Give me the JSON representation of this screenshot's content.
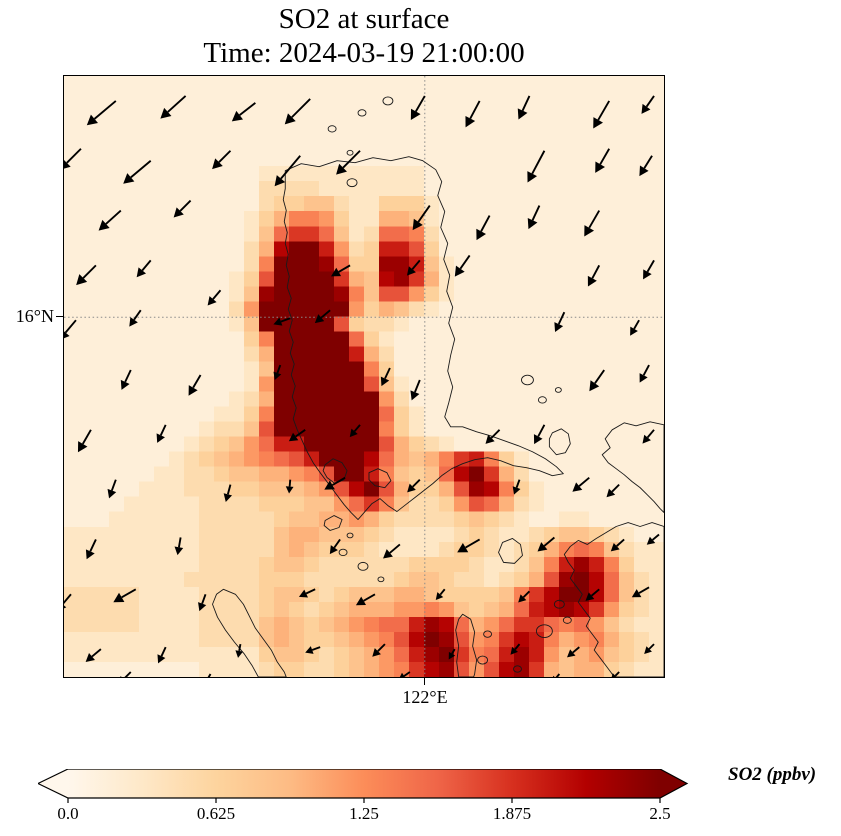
{
  "figure": {
    "title_line1": "SO2 at surface",
    "title_line2": "Time: 2024-03-19 21:00:00"
  },
  "axes": {
    "y_tick_label": "16°N",
    "x_tick_label": "122°E"
  },
  "colorbar": {
    "label": "SO2 (ppbv)",
    "ticks": [
      "0.0",
      "0.625",
      "1.25",
      "1.875",
      "2.5"
    ]
  },
  "chart_data": {
    "type": "heatmap",
    "subtype": "geographic SO2 concentration map with wind quiver overlay and coastlines",
    "title": "SO2 at surface",
    "subtitle": "Time: 2024-03-19 21:00:00",
    "x_tick": {
      "label": "122°E",
      "frac": 0.601
    },
    "y_tick": {
      "label": "16°N",
      "frac": 0.401
    },
    "grid_on": true,
    "colorbar": {
      "label": "SO2 (ppbv)",
      "vmin": 0.0,
      "vmax": 2.5,
      "ticks": [
        0.0,
        0.625,
        1.25,
        1.875,
        2.5
      ],
      "extend": "both",
      "colormap": [
        "#fff7ec",
        "#fee8c8",
        "#fdd49e",
        "#fdbb84",
        "#fc8d59",
        "#ef6548",
        "#d7301f",
        "#b30000",
        "#7f0000"
      ]
    },
    "grid": {
      "cols": 40,
      "rows": 40,
      "value_scale": "hex digit 0-15 maps linearly to 0-2.5 ppbv",
      "values": [
        "1111111111111111111111111111111111111111",
        "1111111111111111111111111111111111111111",
        "1111111111111111111111111111111111111111",
        "1111111111111111111111111111111111111111",
        "1111111111111111111111111111111111111111",
        "1111111111111111111111111111111111111111",
        "1111111111111222222222221111111111111111",
        "1111111111111333322222221111111111111111",
        "1111111111111344553224442111111111111111",
        "1111111111112468874226652111111111111111",
        "111111111111259bb95239983111111111111111",
        "11111111111136dffc734cca4111111111111111",
        "11111111111138fffe944eec5211111111111111",
        "1111111111124affffb65deb6211111111111111",
        "1111111111125effffe85aa74211111111111111",
        "1111111111137ffffff746532111111111111111",
        "1111111111125fffffa433211111111111111111",
        "11111111111148fffff942111111111111111111",
        "11111111111136fffffc63111111111111111111",
        "11111111111125ffffff84111111111111111111",
        "11111111111127ffffffa5211111111111111111",
        "11111111111236fffffff7311111111111111111",
        "11111111112248fffffff9421111111111111111",
        "1111111112335afffffff8421111111111111111",
        "11111111234579ccfffffa643211111111111111",
        "111111123456789acfffd96568bc842111111111",
        "11111122334556678affc85459dfb63111111111",
        "111112223334455567adfa6446aed84211111111",
        "11112222233334445579b853347a963211111111",
        "1112222223333345566764333345432112211111",
        "2222222223333356655543222234322345543211",
        "2222222223333356544432222344323468985322",
        "222222222333345543333334444322358cec8422",
        "22222222333334443333334554332346aefd9532",
        "3333322223333455434555665444458bdffd9532",
        "3333322223333454345666778754569cdedb7432",
        "33333222233335654567899ced9679bb98975322",
        "2222222223333565445678adfea78bdc86786432",
        "22222222222224554345679cefb89cec75675432",
        "11111111122223443345678bdea7adeb65664322"
      ]
    },
    "arrows_format": "[x_px, y_px, direction_deg_screen, length_px] in 602x603 plot-local coords; wind blowing toward SW",
    "arrows": [
      [
        52,
        25,
        140,
        38
      ],
      [
        122,
        20,
        138,
        34
      ],
      [
        192,
        27,
        142,
        30
      ],
      [
        247,
        23,
        135,
        36
      ],
      [
        362,
        20,
        120,
        28
      ],
      [
        417,
        25,
        118,
        30
      ],
      [
        467,
        20,
        115,
        26
      ],
      [
        547,
        25,
        120,
        32
      ],
      [
        592,
        20,
        125,
        22
      ],
      [
        17,
        73,
        135,
        30
      ],
      [
        87,
        85,
        140,
        36
      ],
      [
        167,
        75,
        135,
        26
      ],
      [
        237,
        80,
        130,
        40
      ],
      [
        297,
        75,
        135,
        34
      ],
      [
        482,
        75,
        118,
        36
      ],
      [
        547,
        73,
        120,
        28
      ],
      [
        590,
        80,
        122,
        24
      ],
      [
        57,
        135,
        138,
        30
      ],
      [
        127,
        125,
        135,
        24
      ],
      [
        367,
        130,
        125,
        30
      ],
      [
        427,
        140,
        118,
        28
      ],
      [
        477,
        130,
        115,
        26
      ],
      [
        537,
        135,
        120,
        30
      ],
      [
        32,
        190,
        135,
        28
      ],
      [
        87,
        185,
        130,
        22
      ],
      [
        157,
        215,
        130,
        20
      ],
      [
        287,
        190,
        150,
        22
      ],
      [
        357,
        185,
        130,
        20
      ],
      [
        407,
        180,
        125,
        26
      ],
      [
        537,
        190,
        118,
        24
      ],
      [
        592,
        185,
        120,
        22
      ],
      [
        12,
        245,
        130,
        26
      ],
      [
        77,
        235,
        125,
        20
      ],
      [
        227,
        243,
        160,
        18
      ],
      [
        267,
        235,
        140,
        20
      ],
      [
        502,
        237,
        115,
        22
      ],
      [
        577,
        245,
        120,
        18
      ],
      [
        67,
        295,
        115,
        22
      ],
      [
        137,
        300,
        120,
        24
      ],
      [
        217,
        290,
        110,
        16
      ],
      [
        327,
        293,
        115,
        20
      ],
      [
        357,
        305,
        112,
        22
      ],
      [
        542,
        295,
        125,
        26
      ],
      [
        587,
        290,
        118,
        20
      ],
      [
        27,
        355,
        120,
        26
      ],
      [
        102,
        350,
        115,
        20
      ],
      [
        242,
        355,
        145,
        20
      ],
      [
        297,
        350,
        130,
        16
      ],
      [
        437,
        355,
        135,
        20
      ],
      [
        482,
        350,
        118,
        22
      ],
      [
        592,
        355,
        130,
        18
      ],
      [
        52,
        405,
        110,
        20
      ],
      [
        167,
        410,
        105,
        18
      ],
      [
        227,
        405,
        95,
        14
      ],
      [
        282,
        403,
        150,
        24
      ],
      [
        357,
        405,
        135,
        18
      ],
      [
        457,
        405,
        110,
        16
      ],
      [
        527,
        403,
        140,
        22
      ],
      [
        557,
        410,
        135,
        18
      ],
      [
        32,
        465,
        115,
        22
      ],
      [
        117,
        463,
        100,
        18
      ],
      [
        277,
        465,
        125,
        18
      ],
      [
        337,
        470,
        140,
        22
      ],
      [
        417,
        465,
        150,
        26
      ],
      [
        492,
        463,
        140,
        22
      ],
      [
        562,
        465,
        138,
        18
      ],
      [
        597,
        460,
        140,
        16
      ],
      [
        7,
        520,
        130,
        22
      ],
      [
        72,
        515,
        150,
        26
      ],
      [
        142,
        520,
        110,
        18
      ],
      [
        252,
        515,
        155,
        18
      ],
      [
        312,
        520,
        150,
        22
      ],
      [
        382,
        515,
        130,
        14
      ],
      [
        467,
        517,
        135,
        16
      ],
      [
        537,
        515,
        140,
        18
      ],
      [
        587,
        513,
        150,
        20
      ],
      [
        37,
        575,
        140,
        20
      ],
      [
        102,
        573,
        115,
        18
      ],
      [
        177,
        570,
        100,
        14
      ],
      [
        257,
        573,
        160,
        16
      ],
      [
        322,
        570,
        135,
        18
      ],
      [
        392,
        575,
        120,
        12
      ],
      [
        457,
        570,
        130,
        14
      ],
      [
        517,
        573,
        140,
        16
      ],
      [
        592,
        570,
        135,
        14
      ],
      [
        67,
        598,
        135,
        18
      ],
      [
        147,
        600,
        120,
        14
      ],
      [
        347,
        598,
        145,
        14
      ],
      [
        497,
        600,
        130,
        12
      ],
      [
        557,
        598,
        135,
        12
      ]
    ],
    "coastlines": {
      "paths": [
        "M222,95 L238,88 L256,91 L274,85 L292,87 L310,82 L328,85 L346,81 L360,85 L373,94 L379,106 L375,120 L382,136 L378,152 L385,168 L381,184 L387,200 L384,216 L390,232 L386,248 L392,264 L388,280 L385,296 L390,312 L386,328 L382,342 L388,352 L400,352 L414,357 L428,361 L442,366 L456,371 L470,377 L483,384 L494,392 L501,399 L490,401 L477,396 L464,393 L451,391 L438,386 L425,383 L412,385 L400,389 L389,394 L379,401 L370,409 L361,416 L352,423 L343,430 L334,437 L325,431 L317,424 L309,429 L302,437 L295,445 L288,438 L281,430 L275,422 L269,414 L263,406 L257,398 L250,388 L244,377 L239,366 L234,355 L230,344 L233,333 L229,322 L232,311 L228,300 L231,289 L227,278 L230,267 L226,256 L229,245 L225,234 L228,223 L224,212 L226,201 L223,190 L225,179 L222,168 L224,157 L221,146 L223,135 L220,124 L222,113 Z",
        "M262,390 L270,384 L279,388 L284,396 L281,405 L272,409 L264,403 L260,396 Z",
        "M306,398 L315,394 L324,398 L328,406 L322,413 L312,411 L306,405 Z",
        "M490,358 L499,354 L506,359 L508,369 L503,378 L494,380 L487,372 L487,364 Z",
        "M262,446 L271,441 L279,445 L276,453 L267,456 L261,451 Z",
        "M160,515 L172,520 L180,530 L186,542 L192,554 L200,565 L208,576 L214,588 L221,598 L223,603 L195,603 L189,592 L181,580 L171,568 L162,556 L154,543 L149,530 L153,520 Z",
        "M400,540 L408,545 L412,558 L410,572 L414,586 L412,600 L411,603 L396,603 L394,588 L396,572 L393,556 L396,545 Z",
        "M436,478 L440,468 L450,464 L458,470 L460,481 L452,489 L441,488 Z",
        "M602,350 L588,347 L574,351 L562,348 L550,355 L543,364 L548,373 L540,380 L546,388 L554,394 L562,400 L570,407 L578,413 L585,420 L592,427 L598,434 L602,438 Z",
        "M602,452 L590,448 L578,452 L566,448 L554,452 L544,458 L534,464 L525,470 L516,466 L508,472 L502,480 L506,488 L512,496 L508,504 L514,512 L520,520 L516,528 L522,536 L528,544 L524,552 L530,560 L536,568 L532,576 L538,584 L544,592 L550,600 L552,603 L602,603 Z"
      ],
      "islets": [
        [
          299,
          37,
          4
        ],
        [
          325,
          25,
          5
        ],
        [
          269,
          53,
          4
        ],
        [
          287,
          77,
          3
        ],
        [
          289,
          107,
          5
        ],
        [
          465,
          305,
          6
        ],
        [
          480,
          325,
          4
        ],
        [
          496,
          315,
          3
        ],
        [
          287,
          461,
          3
        ],
        [
          425,
          560,
          4
        ],
        [
          420,
          586,
          5
        ],
        [
          482,
          557,
          8
        ],
        [
          497,
          530,
          5
        ],
        [
          505,
          546,
          4
        ],
        [
          280,
          478,
          4
        ],
        [
          300,
          492,
          5
        ],
        [
          318,
          505,
          3
        ],
        [
          455,
          595,
          4
        ]
      ]
    }
  }
}
